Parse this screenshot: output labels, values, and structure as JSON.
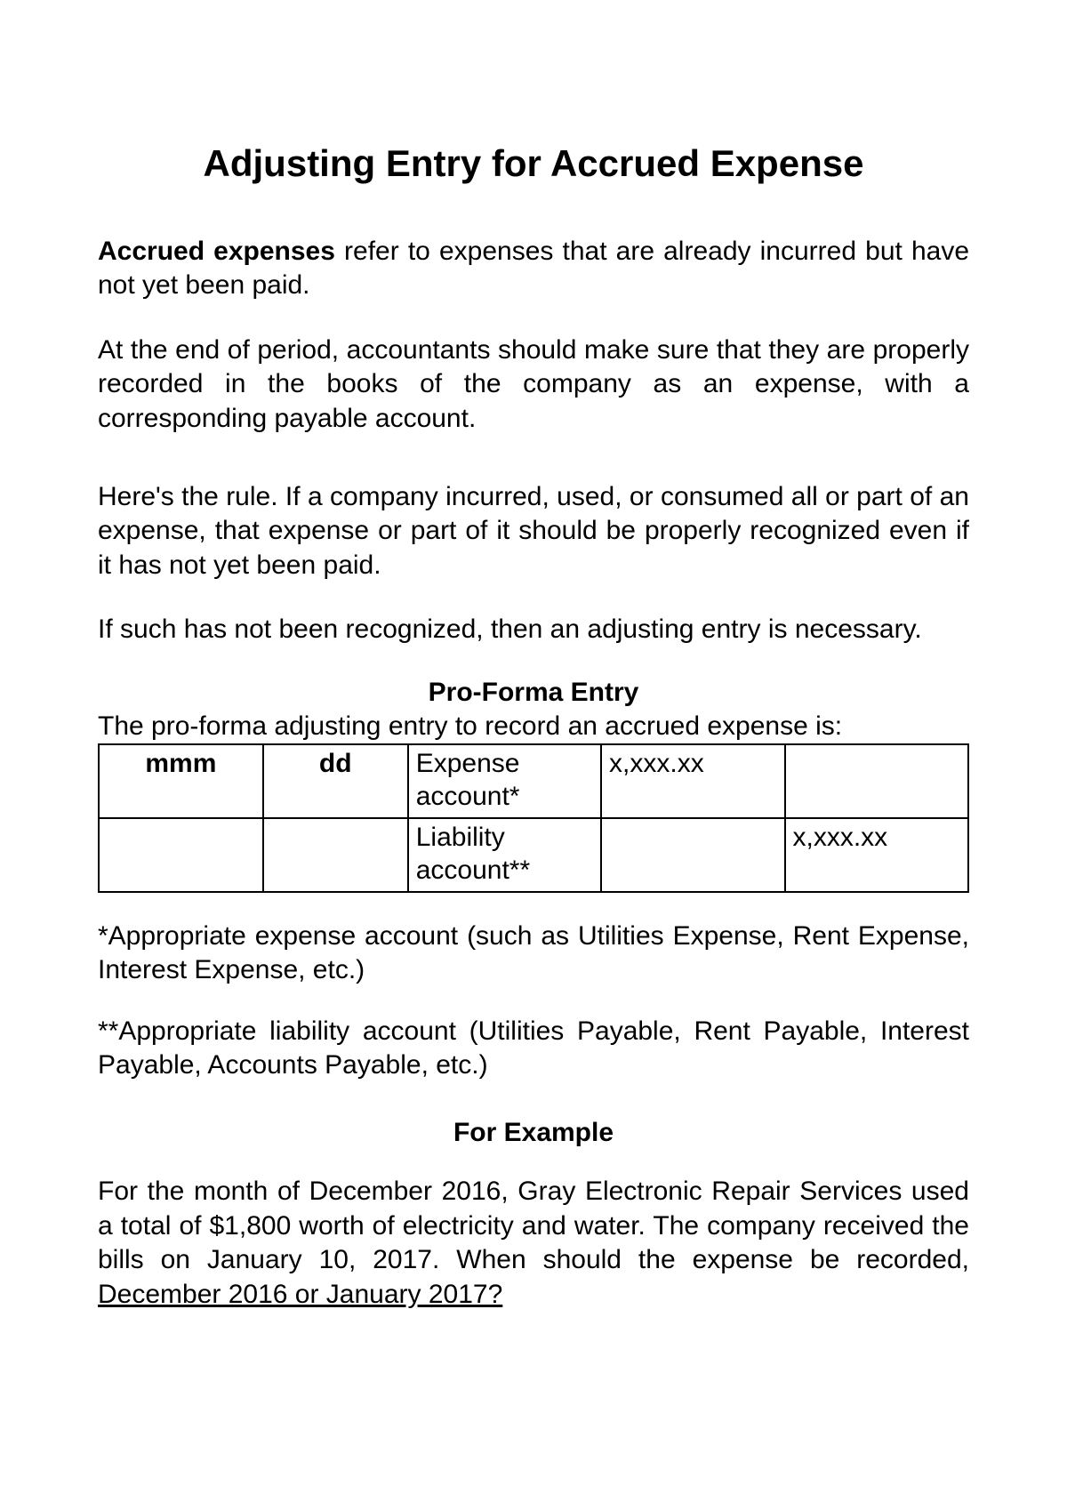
{
  "title": "Adjusting Entry for Accrued Expense",
  "intro": {
    "lead_bold": "Accrued expenses",
    "lead_rest": " refer to expenses that are already incurred but have not yet been paid.",
    "p2": "At the end of period, accountants should make sure that they are properly recorded in the books of the company as an expense, with a corresponding payable account.",
    "p3": "Here's the rule. If a company incurred, used, or consumed all or part of an expense, that expense or part of it should be properly recognized even if it has not yet been paid.",
    "p4": "If such has not been recognized, then an adjusting entry is necessary."
  },
  "proforma": {
    "heading": "Pro-Forma Entry",
    "lead": "The pro-forma adjusting entry to record an accrued expense is:",
    "table": {
      "row1": {
        "month": "mmm",
        "day": "dd",
        "account": "Expense account*",
        "debit": "x,xxx.xx",
        "credit": ""
      },
      "row2": {
        "month": "",
        "day": "",
        "account": "Liability account**",
        "debit": "",
        "credit": "x,xxx.xx"
      }
    },
    "note1": "*Appropriate expense account (such as Utilities Expense, Rent Expense, Interest Expense, etc.)",
    "note2": "**Appropriate liability account (Utilities Payable, Rent Payable, Interest Payable, Accounts Payable, etc.)"
  },
  "example": {
    "heading": "For Example",
    "body_pre": "For the month of December 2016, Gray Electronic Repair Services used a total of $1,800 worth of electricity and water. The company received the bills on January 10, 2017. When should the expense be recorded, ",
    "body_underlined": "December 2016 or January 2017?"
  }
}
